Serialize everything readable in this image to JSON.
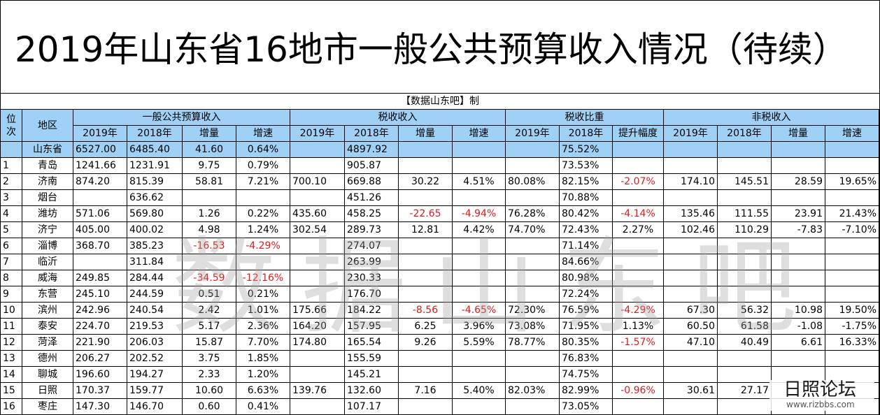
{
  "title": "2019年山东省16地市一般公共预算收入情况（待续）",
  "credit": "【数据山东吧】制",
  "watermark": "数据山东吧",
  "logo": {
    "name": "日照论坛",
    "url": "www.rizbbs.com"
  },
  "headers": {
    "rank": "位次",
    "region": "地区",
    "groups": [
      "一般公共预算收入",
      "税收收入",
      "税收比重",
      "非税收入"
    ],
    "sub1": [
      "2019年",
      "2018年",
      "增量",
      "增速"
    ],
    "sub2": [
      "2019年",
      "2018年",
      "增量",
      "增速"
    ],
    "sub3": [
      "2019年",
      "2018年",
      "提升幅度"
    ],
    "sub4": [
      "2019年",
      "2018年",
      "增量",
      "增速"
    ]
  },
  "province": [
    "",
    "山东省",
    "6527.00",
    "6485.40",
    "41.60",
    "0.64%",
    "",
    "4897.92",
    "",
    "",
    "",
    "75.52%",
    "",
    "",
    "",
    "",
    ""
  ],
  "rows": [
    [
      "1",
      "青岛",
      "1241.66",
      "1231.91",
      "9.75",
      "0.79%",
      "",
      "905.87",
      "",
      "",
      "",
      "73.53%",
      "",
      "",
      "",
      "",
      ""
    ],
    [
      "2",
      "济南",
      "874.20",
      "815.39",
      "58.81",
      "7.21%",
      "700.10",
      "669.88",
      "30.22",
      "4.51%",
      "80.08%",
      "82.15%",
      "-2.07%",
      "174.10",
      "145.51",
      "28.59",
      "19.65%"
    ],
    [
      "3",
      "烟台",
      "",
      "636.62",
      "",
      "",
      "",
      "451.26",
      "",
      "",
      "",
      "70.88%",
      "",
      "",
      "",
      "",
      ""
    ],
    [
      "4",
      "潍坊",
      "571.06",
      "569.80",
      "1.26",
      "0.22%",
      "435.60",
      "458.25",
      "-22.65",
      "-4.94%",
      "76.28%",
      "80.42%",
      "-4.14%",
      "135.46",
      "111.55",
      "23.91",
      "21.43%"
    ],
    [
      "5",
      "济宁",
      "405.00",
      "400.02",
      "4.98",
      "1.24%",
      "302.54",
      "289.73",
      "12.81",
      "4.42%",
      "74.70%",
      "72.43%",
      "2.27%",
      "102.46",
      "110.29",
      "-7.83",
      "-7.10%"
    ],
    [
      "6",
      "淄博",
      "368.70",
      "385.23",
      "-16.53",
      "-4.29%",
      "",
      "274.07",
      "",
      "",
      "",
      "71.14%",
      "",
      "",
      "",
      "",
      ""
    ],
    [
      "7",
      "临沂",
      "",
      "311.84",
      "",
      "",
      "",
      "263.99",
      "",
      "",
      "",
      "84.66%",
      "",
      "",
      "",
      "",
      ""
    ],
    [
      "8",
      "威海",
      "249.85",
      "284.44",
      "-34.59",
      "-12.16%",
      "",
      "230.33",
      "",
      "",
      "",
      "80.98%",
      "",
      "",
      "",
      "",
      ""
    ],
    [
      "9",
      "东营",
      "245.10",
      "244.59",
      "0.51",
      "0.21%",
      "",
      "176.70",
      "",
      "",
      "",
      "72.24%",
      "",
      "",
      "",
      "",
      ""
    ],
    [
      "10",
      "滨州",
      "242.96",
      "240.54",
      "2.42",
      "1.01%",
      "175.66",
      "184.22",
      "-8.56",
      "-4.65%",
      "72.30%",
      "76.59%",
      "-4.29%",
      "67.30",
      "56.32",
      "10.98",
      "19.50%"
    ],
    [
      "11",
      "泰安",
      "224.70",
      "219.53",
      "5.17",
      "2.36%",
      "164.20",
      "157.95",
      "6.25",
      "3.96%",
      "73.08%",
      "71.95%",
      "1.13%",
      "60.50",
      "61.58",
      "-1.08",
      "-1.75%"
    ],
    [
      "12",
      "菏泽",
      "221.90",
      "206.03",
      "15.87",
      "7.70%",
      "174.80",
      "165.54",
      "9.26",
      "5.59%",
      "78.77%",
      "80.35%",
      "-1.57%",
      "47.10",
      "40.49",
      "6.61",
      "16.33%"
    ],
    [
      "13",
      "德州",
      "206.27",
      "202.52",
      "3.75",
      "1.85%",
      "",
      "155.59",
      "",
      "",
      "",
      "76.83%",
      "",
      "",
      "",
      "",
      ""
    ],
    [
      "14",
      "聊城",
      "196.60",
      "194.27",
      "2.33",
      "1.20%",
      "",
      "145.21",
      "",
      "",
      "",
      "74.75%",
      "",
      "",
      "",
      "",
      ""
    ],
    [
      "15",
      "日照",
      "170.37",
      "159.77",
      "10.60",
      "6.63%",
      "139.76",
      "132.60",
      "7.16",
      "5.40%",
      "82.03%",
      "82.99%",
      "-0.96%",
      "30.61",
      "27.17",
      "",
      ""
    ],
    [
      "16",
      "枣庄",
      "147.30",
      "146.70",
      "0.60",
      "0.41%",
      "",
      "107.17",
      "",
      "",
      "",
      "73.05%",
      "",
      "",
      "",
      "",
      ""
    ]
  ],
  "red_cells": [
    [
      5,
      4
    ],
    [
      5,
      5
    ],
    [
      7,
      4
    ],
    [
      7,
      5
    ],
    [
      3,
      8
    ],
    [
      3,
      9
    ],
    [
      3,
      12
    ],
    [
      9,
      8
    ],
    [
      9,
      9
    ],
    [
      9,
      12
    ],
    [
      11,
      12
    ],
    [
      14,
      12
    ],
    [
      1,
      12
    ]
  ],
  "colors": {
    "header_bg": "#9fd0f5",
    "negative": "#e01b1b"
  }
}
